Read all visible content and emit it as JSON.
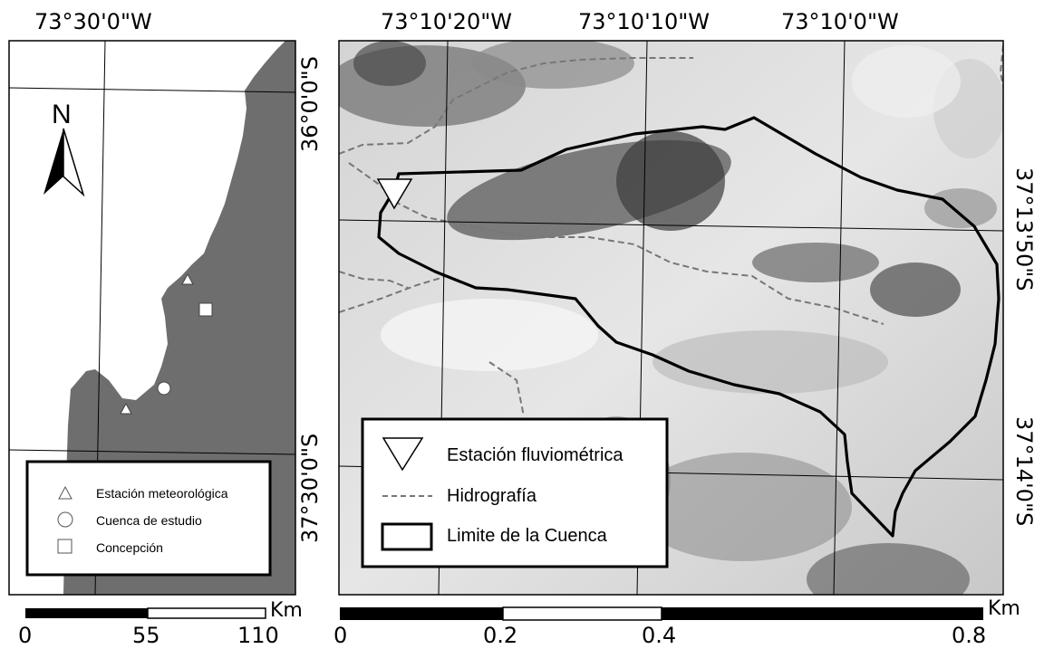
{
  "overview_map": {
    "top_label": "73°30'0\"W",
    "left_label_top": "36°0'0\"S",
    "left_label_bottom": "37°30'0\"S",
    "north": "N",
    "legend": {
      "items": [
        {
          "symbol": "triangle",
          "label": "Estación meteorológica"
        },
        {
          "symbol": "circle",
          "label": "Cuenca de estudio"
        },
        {
          "symbol": "square",
          "label": "Concepción"
        }
      ]
    },
    "scale": {
      "unit": "Km",
      "ticks": [
        "0",
        "55",
        "110"
      ]
    },
    "colors": {
      "land": "#6e6e6e",
      "sea": "#ffffff"
    }
  },
  "detail_map": {
    "top_labels": [
      "73°10'20\"W",
      "73°10'10\"W",
      "73°10'0\"W"
    ],
    "right_labels": [
      "37°13'50\"S",
      "37°14'0\"S"
    ],
    "legend": {
      "items": [
        {
          "symbol": "inverted-triangle",
          "label": "Estación fluviométrica"
        },
        {
          "symbol": "dashed-line",
          "label": "Hidrografía"
        },
        {
          "symbol": "thick-outline",
          "label": "Limite de la Cuenca"
        }
      ]
    },
    "scale": {
      "unit": "Km",
      "ticks": [
        "0",
        "0.2",
        "0.4",
        "0.8"
      ]
    },
    "colors": {
      "basin": "#000000",
      "streams": "#777777"
    }
  }
}
